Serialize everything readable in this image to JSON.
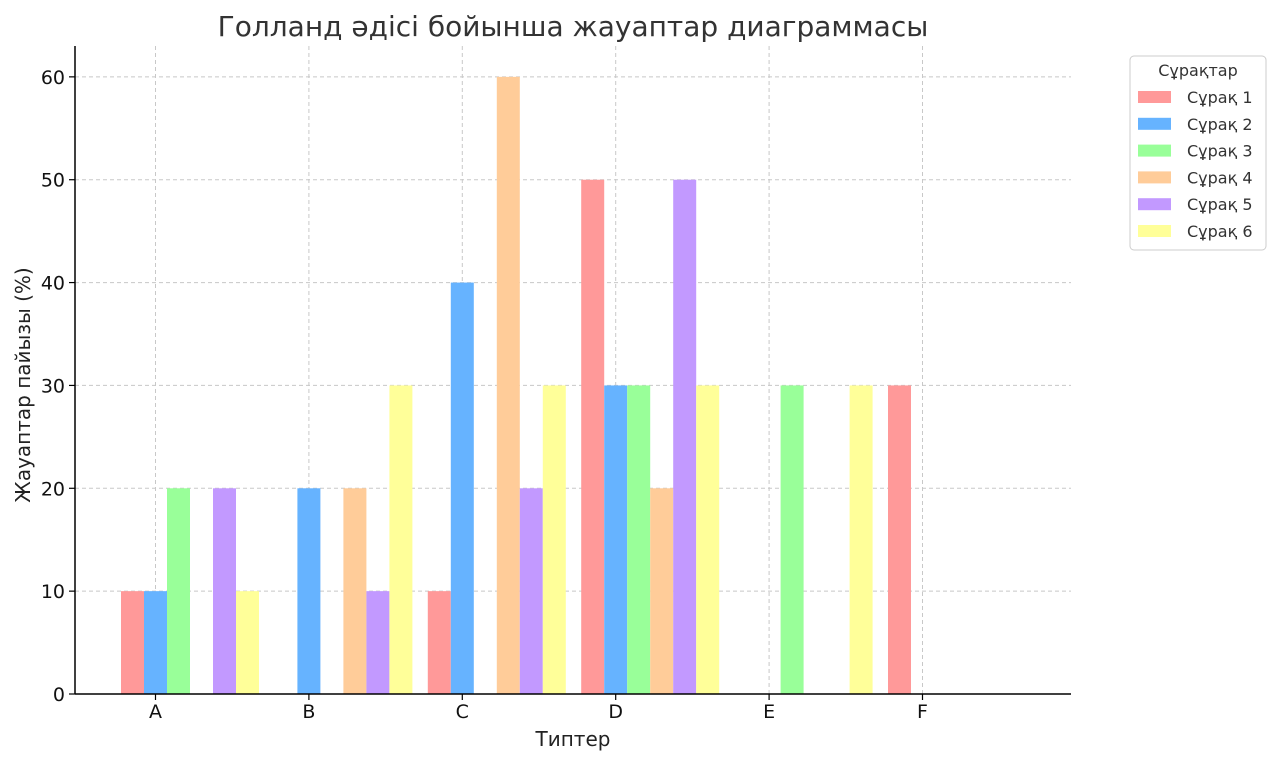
{
  "chart_data": {
    "type": "bar",
    "title": "Голланд әдісі бойынша жауаптар диаграммасы",
    "xlabel": "Типтер",
    "ylabel": "Жауаптар пайызы (%)",
    "categories": [
      "A",
      "B",
      "C",
      "D",
      "E",
      "F"
    ],
    "ylim": [
      0,
      63
    ],
    "yticks": [
      0,
      10,
      20,
      30,
      40,
      50,
      60
    ],
    "grid": true,
    "legend": {
      "title": "Сұрақтар",
      "placement": "outside-top-right"
    },
    "series": [
      {
        "name": "Сұрақ 1",
        "color": "#ff9999",
        "values": [
          10,
          0,
          10,
          50,
          0,
          30
        ]
      },
      {
        "name": "Сұрақ 2",
        "color": "#66b3ff",
        "values": [
          10,
          20,
          40,
          30,
          0,
          0
        ]
      },
      {
        "name": "Сұрақ 3",
        "color": "#99ff99",
        "values": [
          20,
          0,
          0,
          30,
          30,
          0
        ]
      },
      {
        "name": "Сұрақ 4",
        "color": "#ffcc99",
        "values": [
          0,
          20,
          60,
          20,
          0,
          0
        ]
      },
      {
        "name": "Сұрақ 5",
        "color": "#c299ff",
        "values": [
          20,
          10,
          20,
          50,
          0,
          0
        ]
      },
      {
        "name": "Сұрақ 6",
        "color": "#ffff99",
        "values": [
          10,
          30,
          30,
          30,
          30,
          0
        ]
      }
    ]
  }
}
